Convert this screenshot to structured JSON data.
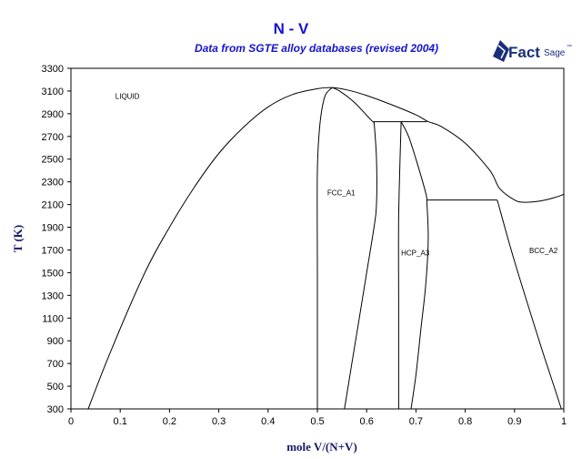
{
  "header": {
    "title": "N - V",
    "subtitle": "Data from SGTE alloy databases (revised 2004)"
  },
  "logo": {
    "word_fact": "Fact",
    "word_sage": "Sage",
    "trademark": "™",
    "color": "#1a2f7a"
  },
  "chart_data": {
    "type": "line",
    "title": "N - V",
    "subtitle": "Data from SGTE alloy databases (revised 2004)",
    "xlabel": "mole V/(N+V)",
    "ylabel": "T (K)",
    "xlim": [
      0,
      1
    ],
    "ylim": [
      300,
      3300
    ],
    "xticks": [
      "0",
      "0.1",
      "0.2",
      "0.3",
      "0.4",
      "0.5",
      "0.6",
      "0.7",
      "0.8",
      "0.9",
      "1"
    ],
    "yticks": [
      "300",
      "500",
      "700",
      "900",
      "1100",
      "1300",
      "1500",
      "1700",
      "1900",
      "2100",
      "2300",
      "2500",
      "2700",
      "2900",
      "3100",
      "3300"
    ],
    "grid": false,
    "line_color": "#000000",
    "phase_labels": [
      {
        "text": "LIQUID",
        "x": 0.09,
        "y": 3030
      },
      {
        "text": "FCC_A1",
        "x": 0.52,
        "y": 2180
      },
      {
        "text": "HCP_A3",
        "x": 0.67,
        "y": 1650
      },
      {
        "text": "BCC_A2",
        "x": 0.93,
        "y": 1670
      }
    ],
    "series": [
      {
        "points": [
          [
            0.035,
            300
          ],
          [
            0.08,
            800
          ],
          [
            0.15,
            1500
          ],
          [
            0.2,
            1900
          ],
          [
            0.25,
            2250
          ],
          [
            0.3,
            2550
          ],
          [
            0.35,
            2780
          ],
          [
            0.4,
            2960
          ],
          [
            0.45,
            3070
          ],
          [
            0.5,
            3120
          ],
          [
            0.53,
            3130
          ],
          [
            0.56,
            3110
          ],
          [
            0.6,
            3060
          ],
          [
            0.65,
            2980
          ],
          [
            0.7,
            2890
          ],
          [
            0.725,
            2830
          ],
          [
            0.75,
            2790
          ],
          [
            0.8,
            2640
          ],
          [
            0.85,
            2400
          ],
          [
            0.87,
            2240
          ],
          [
            0.9,
            2140
          ],
          [
            0.92,
            2120
          ],
          [
            0.95,
            2130
          ],
          [
            0.98,
            2160
          ],
          [
            1.0,
            2190
          ]
        ]
      },
      {
        "points": [
          [
            0.53,
            3130
          ],
          [
            0.515,
            3050
          ],
          [
            0.505,
            2800
          ],
          [
            0.5,
            2400
          ],
          [
            0.5,
            1500
          ],
          [
            0.5,
            300
          ]
        ]
      },
      {
        "points": [
          [
            0.53,
            3130
          ],
          [
            0.545,
            3100
          ],
          [
            0.575,
            3000
          ],
          [
            0.61,
            2840
          ],
          [
            0.615,
            2830
          ]
        ]
      },
      {
        "points": [
          [
            0.615,
            2830
          ],
          [
            0.722,
            2830
          ]
        ]
      },
      {
        "points": [
          [
            0.615,
            2830
          ],
          [
            0.62,
            2500
          ],
          [
            0.62,
            2100
          ],
          [
            0.615,
            1900
          ],
          [
            0.6,
            1500
          ],
          [
            0.585,
            1100
          ],
          [
            0.57,
            700
          ],
          [
            0.555,
            300
          ]
        ]
      },
      {
        "points": [
          [
            0.67,
            2830
          ],
          [
            0.665,
            2000
          ],
          [
            0.665,
            1200
          ],
          [
            0.665,
            300
          ]
        ]
      },
      {
        "points": [
          [
            0.67,
            2830
          ],
          [
            0.685,
            2700
          ],
          [
            0.7,
            2500
          ],
          [
            0.72,
            2200
          ],
          [
            0.722,
            2140
          ]
        ]
      },
      {
        "points": [
          [
            0.722,
            2140
          ],
          [
            0.725,
            1800
          ],
          [
            0.72,
            1400
          ],
          [
            0.71,
            1000
          ],
          [
            0.7,
            600
          ],
          [
            0.69,
            300
          ]
        ]
      },
      {
        "points": [
          [
            0.722,
            2140
          ],
          [
            0.865,
            2140
          ]
        ]
      },
      {
        "points": [
          [
            0.865,
            2140
          ],
          [
            0.9,
            1600
          ],
          [
            0.95,
            900
          ],
          [
            0.98,
            500
          ],
          [
            0.995,
            300
          ]
        ]
      }
    ]
  }
}
